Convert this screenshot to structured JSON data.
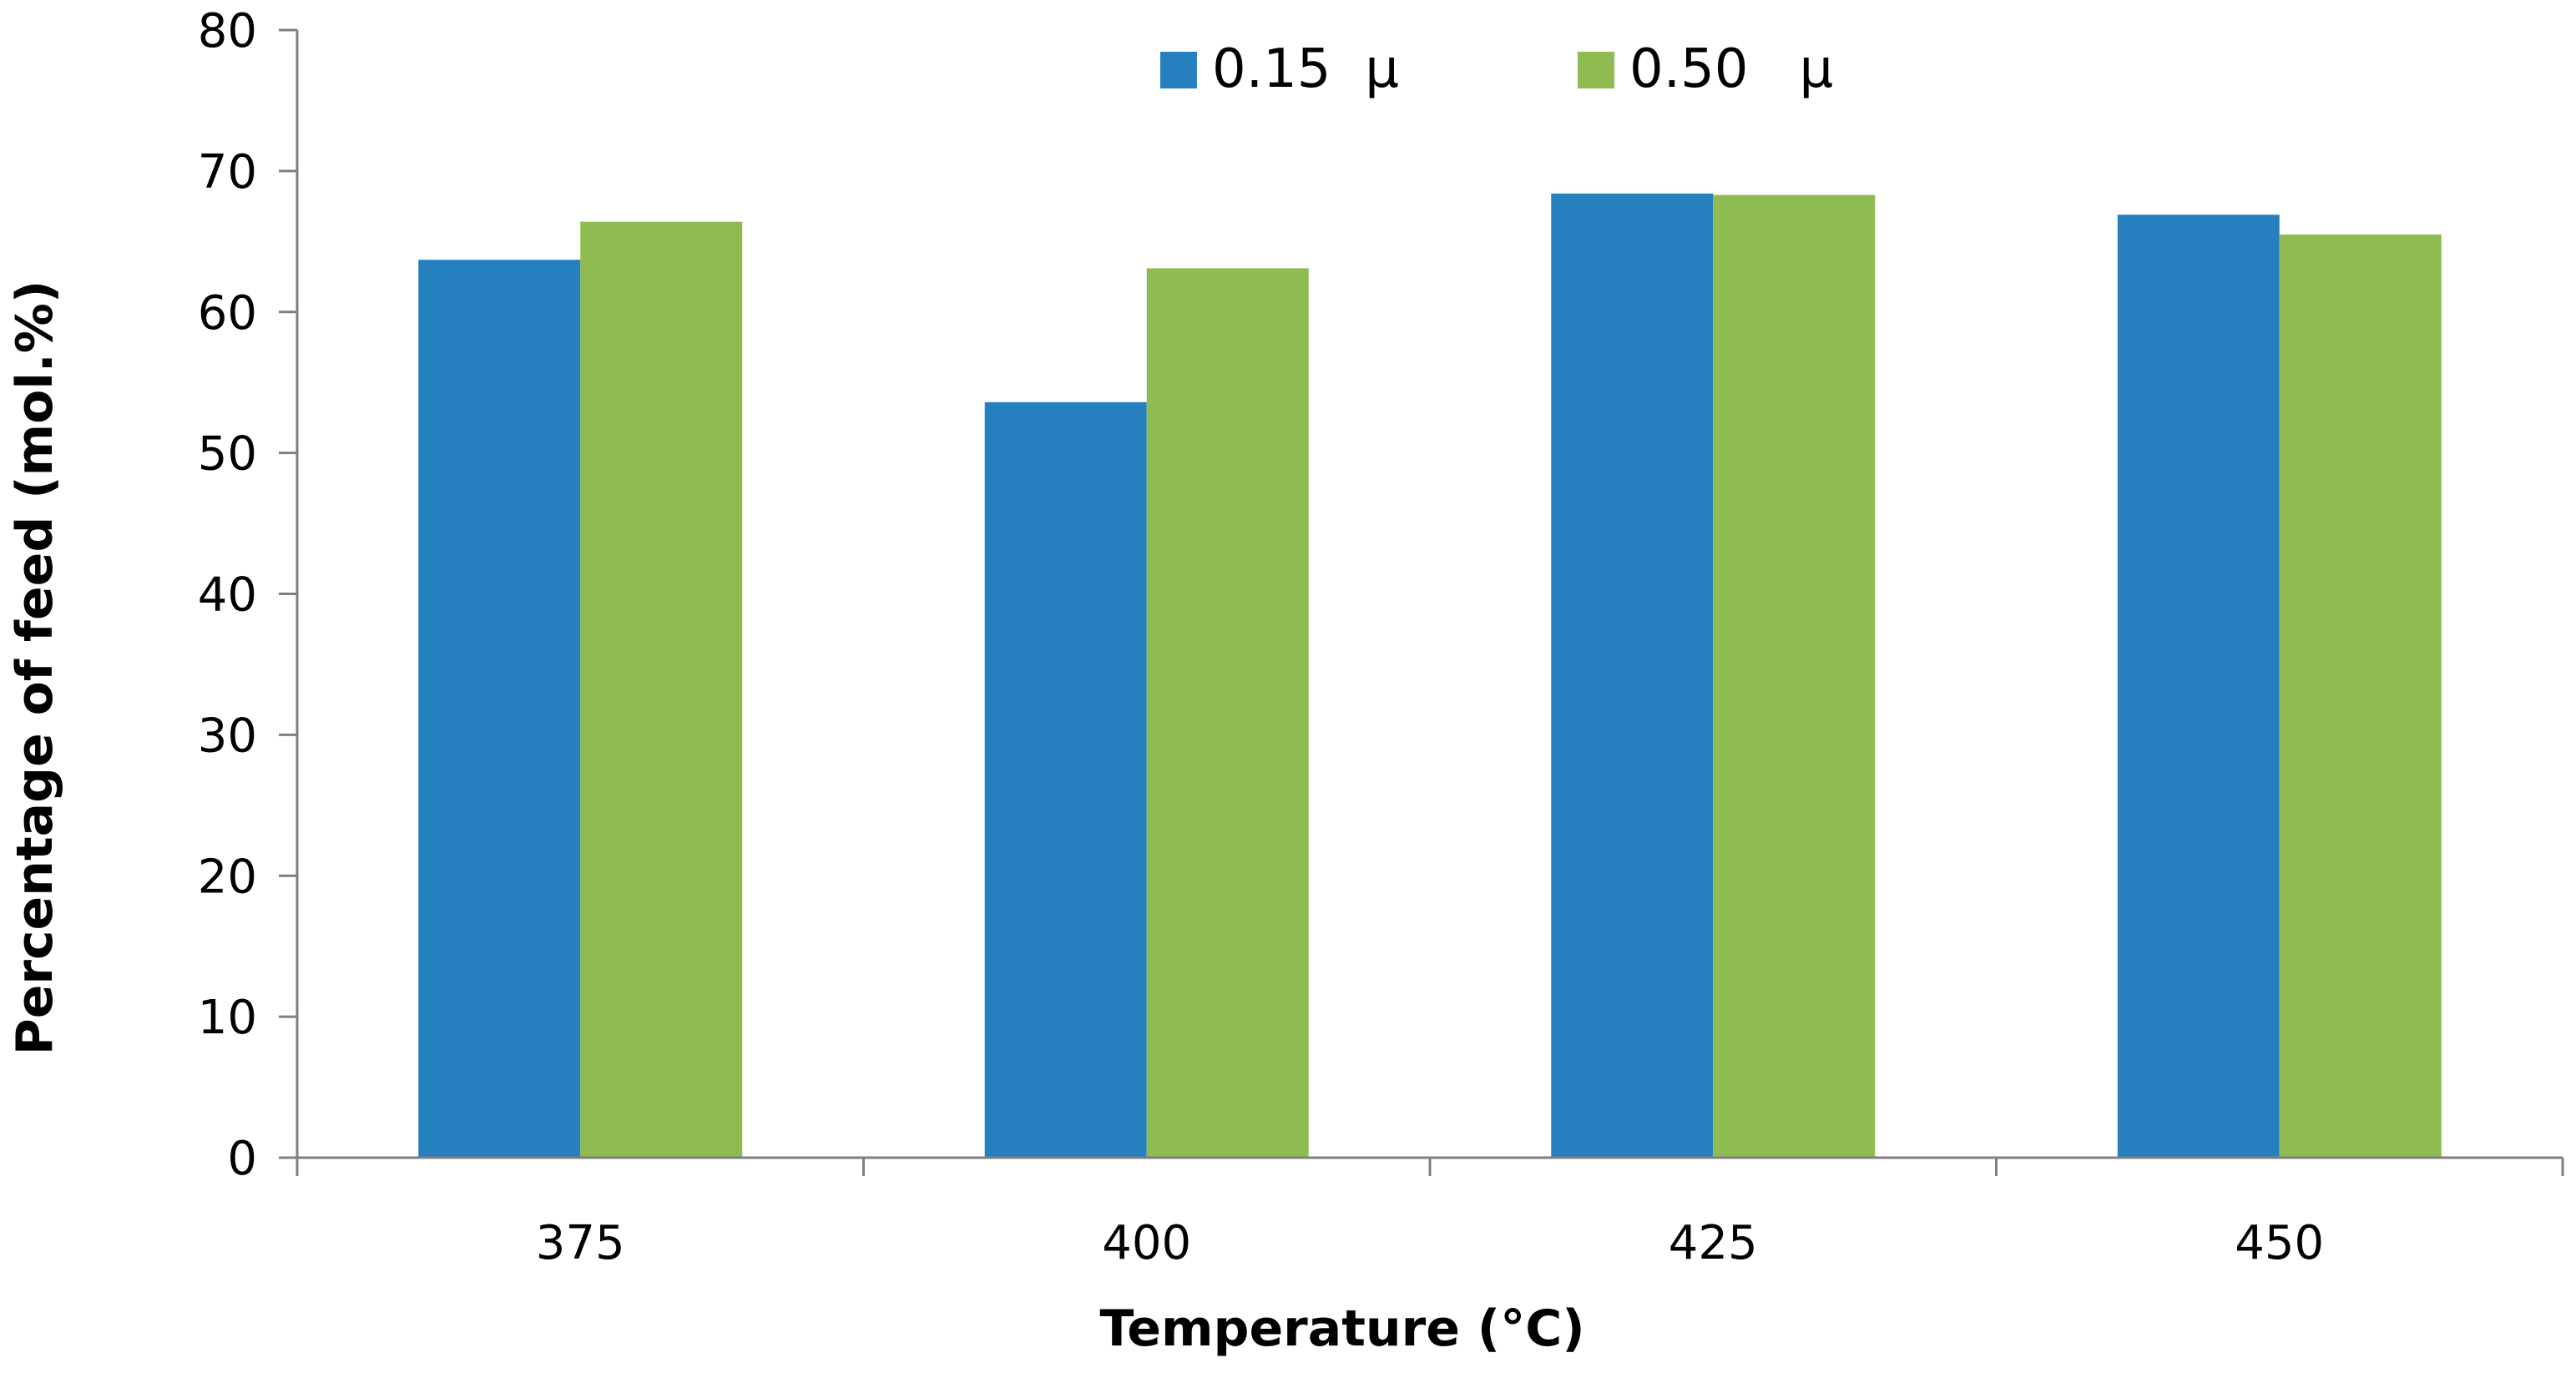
{
  "chart_data": {
    "type": "bar",
    "title": "",
    "categories": [
      "375",
      "400",
      "425",
      "450"
    ],
    "series": [
      {
        "name": "0.15  μ",
        "color": "#2680c0",
        "values": [
          63.7,
          53.6,
          68.4,
          66.9
        ]
      },
      {
        "name": "0.50   μ",
        "color": "#8fbc50",
        "values": [
          66.4,
          63.1,
          68.3,
          65.5
        ]
      }
    ],
    "xlabel": "Temperature (°C)",
    "ylabel": "Percentage of feed (mol.%)",
    "ylim": [
      0,
      80
    ],
    "yticks": [
      "0",
      "10",
      "20",
      "30",
      "40",
      "50",
      "60",
      "70",
      "80"
    ],
    "legend_position": "top-center",
    "grid": false
  }
}
